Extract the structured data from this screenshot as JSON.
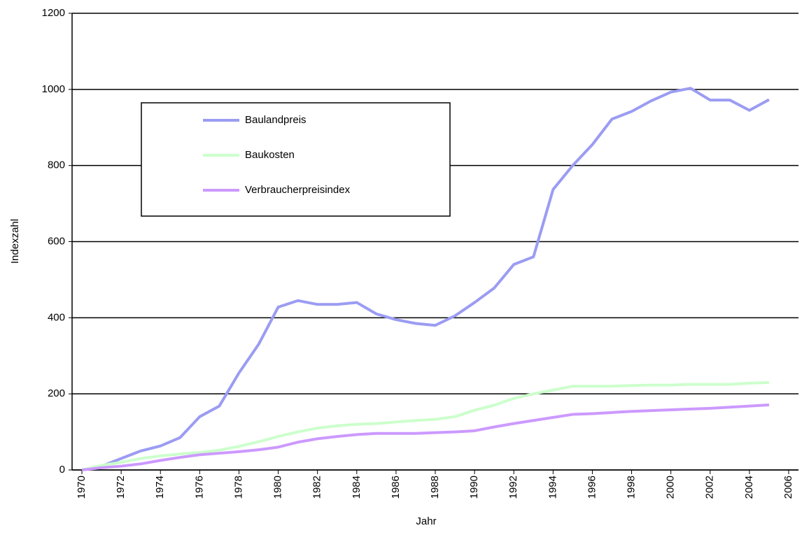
{
  "chart_data": {
    "type": "line",
    "xlabel": "Jahr",
    "ylabel": "Indexzahl",
    "x": [
      1970,
      1971,
      1972,
      1973,
      1974,
      1975,
      1976,
      1977,
      1978,
      1979,
      1980,
      1981,
      1982,
      1983,
      1984,
      1985,
      1986,
      1987,
      1988,
      1989,
      1990,
      1991,
      1992,
      1993,
      1994,
      1995,
      1996,
      1997,
      1998,
      1999,
      2000,
      2001,
      2002,
      2003,
      2004,
      2005
    ],
    "series": [
      {
        "name": "Baulandpreis",
        "color": "#9b9cf2",
        "values": [
          0,
          10,
          30,
          50,
          63,
          85,
          140,
          168,
          255,
          330,
          428,
          445,
          435,
          435,
          440,
          410,
          395,
          385,
          380,
          405,
          440,
          478,
          540,
          560,
          737,
          800,
          855,
          922,
          942,
          970,
          993,
          1003,
          972,
          972,
          945,
          973
        ]
      },
      {
        "name": "Baukosten",
        "color": "#ccffcc",
        "values": [
          0,
          12,
          20,
          30,
          37,
          42,
          46,
          52,
          62,
          74,
          88,
          100,
          110,
          116,
          120,
          122,
          126,
          130,
          133,
          140,
          157,
          170,
          188,
          200,
          210,
          220,
          220,
          220,
          222,
          223,
          223,
          225,
          225,
          225,
          228,
          230
        ]
      },
      {
        "name": "Verbraucherpreisindex",
        "color": "#cc99ff",
        "values": [
          0,
          6,
          10,
          16,
          25,
          33,
          40,
          44,
          48,
          53,
          60,
          73,
          82,
          88,
          93,
          96,
          96,
          96,
          98,
          100,
          103,
          113,
          122,
          130,
          138,
          146,
          148,
          151,
          154,
          156,
          158,
          160,
          162,
          165,
          168,
          171
        ]
      }
    ],
    "xlim": [
      1969.5,
      2006.5
    ],
    "xticks": [
      1970,
      1972,
      1974,
      1976,
      1978,
      1980,
      1982,
      1984,
      1986,
      1988,
      1990,
      1992,
      1994,
      1996,
      1998,
      2000,
      2002,
      2004,
      2006
    ],
    "ylim": [
      0,
      1200
    ],
    "yticks": [
      0,
      200,
      400,
      600,
      800,
      1000,
      1200
    ],
    "grid": true,
    "legend": "upper left"
  }
}
